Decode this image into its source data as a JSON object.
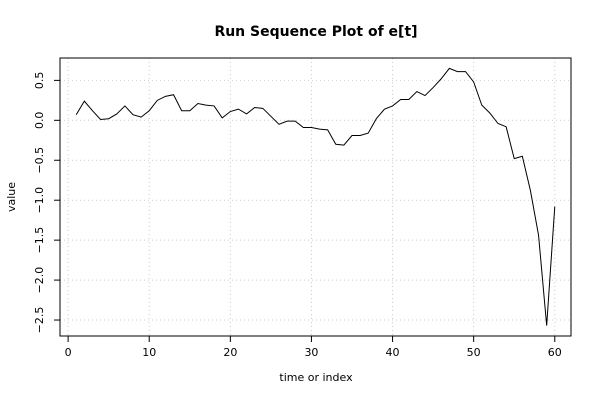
{
  "chart_data": {
    "type": "line",
    "title": "Run Sequence Plot of e[t]",
    "xlabel": "time or index",
    "ylabel": "value",
    "xlim": [
      -1,
      62
    ],
    "ylim": [
      -2.7,
      0.78
    ],
    "xticks": [
      0,
      10,
      20,
      30,
      40,
      50,
      60
    ],
    "xtick_labels": [
      "0",
      "10",
      "20",
      "30",
      "40",
      "50",
      "60"
    ],
    "yticks": [
      0.5,
      0.0,
      -0.5,
      -1.0,
      -1.5,
      -2.0,
      -2.5
    ],
    "ytick_labels": [
      "0.5",
      "0.0",
      "−0.5",
      "−1.0",
      "−1.5",
      "−2.0",
      "−2.5"
    ],
    "grid": true,
    "series": [
      {
        "x": [
          1,
          2,
          3,
          4,
          5,
          6,
          7,
          8,
          9,
          10,
          11,
          12,
          13,
          14,
          15,
          16,
          17,
          18,
          19,
          20,
          21,
          22,
          23,
          24,
          25,
          26,
          27,
          28,
          29,
          30,
          31,
          32,
          33,
          34,
          35,
          36,
          37,
          38,
          39,
          40,
          41,
          42,
          43,
          44,
          45,
          46,
          47,
          48,
          49,
          50,
          51,
          52,
          53,
          54,
          55,
          56,
          57,
          58,
          59,
          60
        ],
        "values": [
          0.07,
          0.24,
          0.12,
          0.01,
          0.02,
          0.08,
          0.18,
          0.07,
          0.04,
          0.12,
          0.25,
          0.3,
          0.32,
          0.12,
          0.12,
          0.21,
          0.19,
          0.18,
          0.03,
          0.11,
          0.14,
          0.08,
          0.16,
          0.15,
          0.05,
          -0.05,
          -0.01,
          -0.01,
          -0.09,
          -0.09,
          -0.11,
          -0.12,
          -0.3,
          -0.31,
          -0.19,
          -0.19,
          -0.16,
          0.02,
          0.14,
          0.18,
          0.26,
          0.26,
          0.36,
          0.31,
          0.41,
          0.52,
          0.65,
          0.61,
          0.61,
          0.48,
          0.19,
          0.09,
          -0.04,
          -0.08,
          -0.48,
          -0.45,
          -0.88,
          -1.44,
          -2.57,
          -1.08
        ],
        "color": "#000000"
      }
    ]
  }
}
